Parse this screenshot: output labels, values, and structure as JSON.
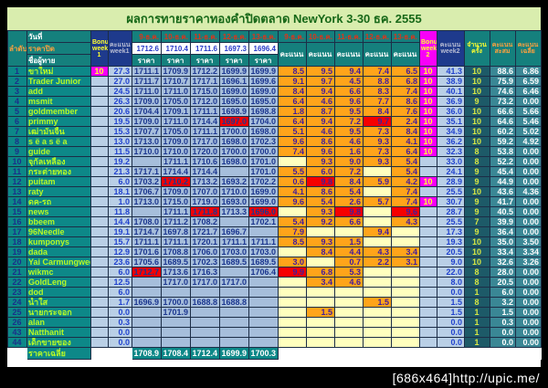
{
  "title": "ผลการทายราคาทองคำปิดตลาด NewYork 3-30 ธค. 2555",
  "watermark": "[686x464]http://upic.me/",
  "colors": {
    "best_prediction_highlight": "#f60000",
    "bonus_cell": "#f800f8",
    "score_cell": "#ffa41a",
    "header_teal": "#15807d",
    "page_background": "#d9edae"
  },
  "header": {
    "rank": "ลำดับ",
    "date": "วันที่",
    "close": "ราคาปิด",
    "name": "ชื่อผู้ทาย",
    "bonus1": "Bonus week 1",
    "week1": "คะแนน week1",
    "dates": [
      "9-ธ.ค.",
      "10-ธ.ค.",
      "11-ธ.ค.",
      "12-ธ.ค.",
      "13-ธ.ค."
    ],
    "close_prices": [
      "1712.6",
      "1710.4",
      "1711.6",
      "1697.3",
      "1696.4"
    ],
    "price_label": "ราคา",
    "score_label": "คะแนน",
    "bonus2": "Bonus week 2",
    "week2": "คะแนน week2",
    "count": "จำนวน ครั้ง",
    "total": "คะแนน สะสม",
    "avg": "คะแนน เฉลี่ย"
  },
  "rows": [
    {
      "rank": "1",
      "name": "ขาใหม่",
      "b1": "10",
      "w1": "27.3",
      "p": [
        "1711.1",
        "1709.9",
        "1712.2",
        "1699.9",
        "1699.9"
      ],
      "s": [
        "8.5",
        "9.5",
        "9.4",
        "7.4",
        "6.5"
      ],
      "b2": "10",
      "w2": "41.3",
      "n": "10",
      "t": "88.6",
      "a": "6.86"
    },
    {
      "rank": "2",
      "name": "Trader Junior",
      "b1": "",
      "w1": "27.0",
      "p": [
        "1711.7",
        "1710.7",
        "1717.1",
        "1696.1",
        "1699.6"
      ],
      "s": [
        "9.1",
        "9.7",
        "4.5",
        "8.8",
        "6.8"
      ],
      "b2": "10",
      "w2": "38.9",
      "n": "10",
      "t": "75.9",
      "a": "6.59"
    },
    {
      "rank": "3",
      "name": "add",
      "b1": "",
      "w1": "24.5",
      "p": [
        "1711.0",
        "1711.0",
        "1715.0",
        "1699.0",
        "1699.0"
      ],
      "s": [
        "8.4",
        "9.4",
        "6.6",
        "8.3",
        "7.4"
      ],
      "b2": "10",
      "w2": "40.1",
      "n": "10",
      "t": "74.6",
      "a": "6.46"
    },
    {
      "rank": "4",
      "name": "msmit",
      "b1": "",
      "w1": "26.3",
      "p": [
        "1709.0",
        "1705.0",
        "1712.0",
        "1695.0",
        "1695.0"
      ],
      "s": [
        "6.4",
        "4.6",
        "9.6",
        "7.7",
        "8.6"
      ],
      "b2": "10",
      "w2": "36.9",
      "n": "9",
      "t": "73.2",
      "a": "0.00"
    },
    {
      "rank": "5",
      "name": "goldmember",
      "b1": "",
      "w1": "20.6",
      "p": [
        "1704.4",
        "1709.1",
        "1711.1",
        "1698.9",
        "1698.8"
      ],
      "s": [
        "1.8",
        "8.7",
        "9.5",
        "8.4",
        "7.6"
      ],
      "b2": "10",
      "w2": "36.0",
      "n": "10",
      "t": "66.6",
      "a": "5.66"
    },
    {
      "rank": "6",
      "name": "primmy",
      "b1": "",
      "w1": "19.5",
      "p": [
        "1709.0",
        "1711.0",
        "1714.4",
        "1697.0",
        "1704.0"
      ],
      "s": [
        "6.4",
        "9.4",
        "7.2",
        "9.7",
        "2.4"
      ],
      "b2": "10",
      "w2": "35.1",
      "n": "10",
      "t": "64.6",
      "a": "5.46",
      "rp": [
        3
      ],
      "rs": [
        3
      ]
    },
    {
      "rank": "7",
      "name": "เฒ่ามั่นจื้น",
      "b1": "",
      "w1": "15.3",
      "p": [
        "1707.7",
        "1705.0",
        "1711.1",
        "1700.0",
        "1698.0"
      ],
      "s": [
        "5.1",
        "4.6",
        "9.5",
        "7.3",
        "8.4"
      ],
      "b2": "10",
      "w2": "34.9",
      "n": "10",
      "t": "60.2",
      "a": "5.02"
    },
    {
      "rank": "8",
      "name": "s ë a s ë a",
      "b1": "",
      "w1": "13.0",
      "p": [
        "1713.0",
        "1709.0",
        "1717.0",
        "1698.0",
        "1702.3"
      ],
      "s": [
        "9.6",
        "8.6",
        "4.6",
        "9.3",
        "4.1"
      ],
      "b2": "10",
      "w2": "36.2",
      "n": "10",
      "t": "59.2",
      "a": "4.92"
    },
    {
      "rank": "9",
      "name": "guide",
      "b1": "",
      "w1": "11.5",
      "p": [
        "1710.0",
        "1710.0",
        "1720.0",
        "1700.0",
        "1700.0"
      ],
      "s": [
        "7.4",
        "9.6",
        "1.6",
        "7.3",
        "6.4"
      ],
      "b2": "10",
      "w2": "32.3",
      "n": "8",
      "t": "53.8",
      "a": "0.00"
    },
    {
      "rank": "10",
      "name": "จุกัลเหลือง",
      "b1": "",
      "w1": "19.2",
      "p": [
        "",
        "1711.1",
        "1710.6",
        "1698.0",
        "1701.0"
      ],
      "s": [
        "",
        "9.3",
        "9.0",
        "9.3",
        "5.4"
      ],
      "b2": "",
      "w2": "33.0",
      "n": "8",
      "t": "52.2",
      "a": "0.00"
    },
    {
      "rank": "11",
      "name": "กระต่ายทอง",
      "b1": "",
      "w1": "21.3",
      "p": [
        "1717.1",
        "1714.4",
        "1714.4",
        "",
        "1701.0"
      ],
      "s": [
        "5.5",
        "6.0",
        "7.2",
        "",
        "5.4"
      ],
      "b2": "",
      "w2": "24.1",
      "n": "9",
      "t": "45.4",
      "a": "0.00"
    },
    {
      "rank": "12",
      "name": "puitam",
      "b1": "",
      "w1": "6.0",
      "p": [
        "1703.2",
        "1710.2",
        "1713.2",
        "1693.2",
        "1702.2"
      ],
      "s": [
        "0.6",
        "9.8",
        "8.4",
        "5.9",
        "4.2"
      ],
      "b2": "10",
      "w2": "28.9",
      "n": "9",
      "t": "44.9",
      "a": "0.00",
      "rp": [
        1
      ],
      "rs": [
        1
      ]
    },
    {
      "rank": "13",
      "name": "raty",
      "b1": "",
      "w1": "18.1",
      "p": [
        "1706.7",
        "1709.0",
        "1707.0",
        "1710.0",
        "1699.0"
      ],
      "s": [
        "4.1",
        "8.6",
        "5.4",
        "",
        "7.4"
      ],
      "b2": "",
      "w2": "25.5",
      "n": "10",
      "t": "43.6",
      "a": "4.36"
    },
    {
      "rank": "14",
      "name": "ดค-รถ",
      "b1": "",
      "w1": "1.0",
      "p": [
        "1713.0",
        "1715.0",
        "1719.0",
        "1693.0",
        "1699.0"
      ],
      "s": [
        "9.6",
        "5.4",
        "2.6",
        "5.7",
        "7.4"
      ],
      "b2": "10",
      "w2": "30.7",
      "n": "9",
      "t": "41.7",
      "a": "0.00"
    },
    {
      "rank": "15",
      "name": "news",
      "b1": "",
      "w1": "11.8",
      "p": [
        "",
        "1711.1",
        "1711.8",
        "1713.3",
        "1696.0"
      ],
      "s": [
        "",
        "9.3",
        "9.8",
        "",
        "9.6"
      ],
      "b2": "",
      "w2": "28.7",
      "n": "9",
      "t": "40.5",
      "a": "0.00",
      "rp": [
        2,
        4
      ],
      "rs": [
        2,
        4
      ]
    },
    {
      "rank": "16",
      "name": "bbeem",
      "b1": "",
      "w1": "14.4",
      "p": [
        "1708.0",
        "1711.2",
        "1708.2",
        "",
        "1702.1"
      ],
      "s": [
        "5.4",
        "9.2",
        "6.6",
        "",
        "4.3"
      ],
      "b2": "",
      "w2": "25.5",
      "n": "7",
      "t": "39.9",
      "a": "0.00"
    },
    {
      "rank": "17",
      "name": "96Needle",
      "b1": "",
      "w1": "19.1",
      "p": [
        "1714.7",
        "1697.8",
        "1721.7",
        "1696.7",
        ""
      ],
      "s": [
        "7.9",
        "",
        "",
        "9.4",
        ""
      ],
      "b2": "",
      "w2": "17.3",
      "n": "9",
      "t": "36.4",
      "a": "0.00"
    },
    {
      "rank": "18",
      "name": "kumponys",
      "b1": "",
      "w1": "15.7",
      "p": [
        "1711.1",
        "1711.1",
        "1720.1",
        "1711.1",
        "1711.1"
      ],
      "s": [
        "8.5",
        "9.3",
        "1.5",
        "",
        ""
      ],
      "b2": "",
      "w2": "19.3",
      "n": "10",
      "t": "35.0",
      "a": "3.50"
    },
    {
      "rank": "19",
      "name": "dada",
      "b1": "",
      "w1": "12.9",
      "p": [
        "1701.6",
        "1708.8",
        "1706.0",
        "1703.0",
        "1703.0"
      ],
      "s": [
        "",
        "8.4",
        "4.4",
        "4.3",
        "3.4"
      ],
      "b2": "",
      "w2": "20.5",
      "n": "10",
      "t": "33.4",
      "a": "3.34"
    },
    {
      "rank": "20",
      "name": "Yai Carmungwed",
      "b1": "",
      "w1": "23.6",
      "p": [
        "1705.6",
        "1689.5",
        "1702.3",
        "1689.5",
        "1689.5"
      ],
      "s": [
        "3.0",
        "",
        "0.7",
        "2.2",
        "3.1"
      ],
      "b2": "",
      "w2": "9.0",
      "n": "10",
      "t": "32.6",
      "a": "3.26"
    },
    {
      "rank": "21",
      "name": "wikmc",
      "b1": "",
      "w1": "6.0",
      "p": [
        "1712.7",
        "1713.6",
        "1716.3",
        "",
        "1706.4"
      ],
      "s": [
        "9.9",
        "6.8",
        "5.3",
        "",
        ""
      ],
      "b2": "",
      "w2": "22.0",
      "n": "8",
      "t": "28.0",
      "a": "0.00",
      "rp": [
        0
      ],
      "rs": [
        0
      ]
    },
    {
      "rank": "22",
      "name": "GoldLeng",
      "b1": "",
      "w1": "12.5",
      "p": [
        "",
        "1717.0",
        "1717.0",
        "1717.0",
        ""
      ],
      "s": [
        "",
        "3.4",
        "4.6",
        "",
        ""
      ],
      "b2": "",
      "w2": "8.0",
      "n": "8",
      "t": "20.5",
      "a": "0.00"
    },
    {
      "rank": "23",
      "name": "dod",
      "b1": "",
      "w1": "6.0",
      "p": [
        "",
        "",
        "",
        "",
        ""
      ],
      "s": [
        "",
        "",
        "",
        "",
        ""
      ],
      "b2": "",
      "w2": "0.0",
      "n": "1",
      "t": "6.0",
      "a": "0.00"
    },
    {
      "rank": "24",
      "name": "น้ำใส",
      "b1": "",
      "w1": "1.7",
      "p": [
        "1696.9",
        "1700.0",
        "1688.8",
        "1688.8",
        ""
      ],
      "s": [
        "",
        "",
        "",
        "1.5",
        ""
      ],
      "b2": "",
      "w2": "1.5",
      "n": "8",
      "t": "3.2",
      "a": "0.00"
    },
    {
      "rank": "25",
      "name": "นายกระจอก",
      "b1": "",
      "w1": "0.0",
      "p": [
        "",
        "1701.9",
        "",
        "",
        ""
      ],
      "s": [
        "",
        "1.5",
        "",
        "",
        ""
      ],
      "b2": "",
      "w2": "1.5",
      "n": "1",
      "t": "1.5",
      "a": "0.00"
    },
    {
      "rank": "26",
      "name": "alan",
      "b1": "",
      "w1": "0.3",
      "p": [
        "",
        "",
        "",
        "",
        ""
      ],
      "s": [
        "",
        "",
        "",
        "",
        ""
      ],
      "b2": "",
      "w2": "0.0",
      "n": "1",
      "t": "0.3",
      "a": "0.00"
    },
    {
      "rank": "43",
      "name": "Natthanit",
      "b1": "",
      "w1": "0.0",
      "p": [
        "",
        "",
        "",
        "",
        ""
      ],
      "s": [
        "",
        "",
        "",
        "",
        ""
      ],
      "b2": "",
      "w2": "0.0",
      "n": "1",
      "t": "0.0",
      "a": "0.00"
    },
    {
      "rank": "44",
      "name": "เด็กขายของ",
      "b1": "",
      "w1": "0.0",
      "p": [
        "",
        "",
        "",
        "",
        ""
      ],
      "s": [
        "",
        "",
        "",
        "",
        ""
      ],
      "b2": "",
      "w2": "0.0",
      "n": "1",
      "t": "0.0",
      "a": "0.00"
    }
  ],
  "footer": {
    "label": "ราคาเฉลี่ย",
    "prices": [
      "1708.9",
      "1708.4",
      "1712.4",
      "1699.9",
      "1700.3"
    ]
  }
}
